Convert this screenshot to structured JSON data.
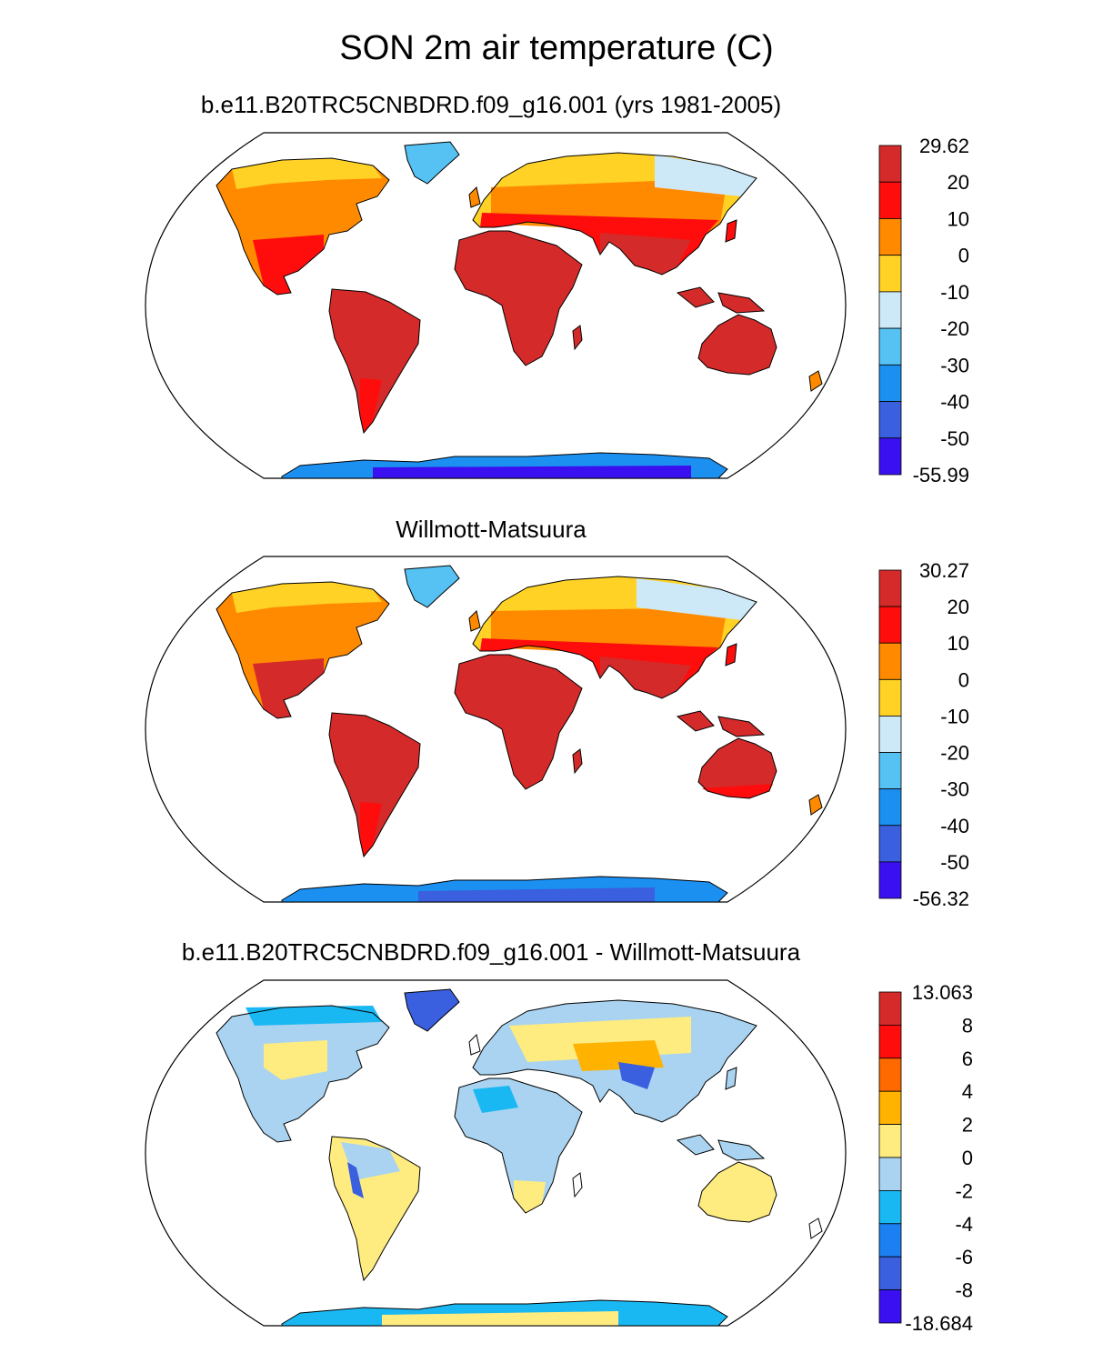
{
  "figure": {
    "title": "SON 2m air temperature (C)"
  },
  "panels": [
    {
      "title": "b.e11.B20TRC5CNBDRD.f09_g16.001 (yrs 1981-2005)",
      "colorbar": {
        "labels": [
          "29.62",
          "20",
          "10",
          "0",
          "-10",
          "-20",
          "-30",
          "-40",
          "-50",
          "-55.99"
        ],
        "colors": [
          "#d42a2a",
          "#ff0d0d",
          "#ff8a00",
          "#ffd225",
          "#cde9f7",
          "#55c2f3",
          "#1c90f0",
          "#3a5fdf",
          "#3b10f0"
        ]
      }
    },
    {
      "title": "Willmott-Matsuura",
      "colorbar": {
        "labels": [
          "30.27",
          "20",
          "10",
          "0",
          "-10",
          "-20",
          "-30",
          "-40",
          "-50",
          "-56.32"
        ],
        "colors": [
          "#d42a2a",
          "#ff0d0d",
          "#ff8a00",
          "#ffd225",
          "#cde9f7",
          "#55c2f3",
          "#1c90f0",
          "#3a5fdf",
          "#3b10f0"
        ]
      }
    },
    {
      "title": "b.e11.B20TRC5CNBDRD.f09_g16.001 - Willmott-Matsuura",
      "colorbar": {
        "labels": [
          "13.063",
          "8",
          "6",
          "4",
          "2",
          "0",
          "-2",
          "-4",
          "-6",
          "-8",
          "-18.684"
        ],
        "colors": [
          "#d42a2a",
          "#ff0d0d",
          "#ff6a00",
          "#ffb200",
          "#ffec80",
          "#a9d3f0",
          "#1ab8f3",
          "#1c7ff2",
          "#3a5fdf",
          "#3b10f0"
        ]
      }
    }
  ]
}
